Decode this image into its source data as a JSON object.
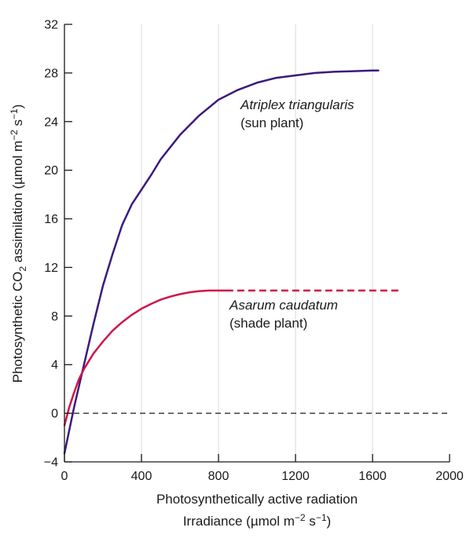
{
  "chart_data": {
    "type": "line",
    "title": "",
    "xlabel_line1": "Photosynthetically active radiation",
    "xlabel_line2_parts": [
      "Irradiance (",
      "µ",
      "mol m",
      "−2",
      " s",
      "−1",
      ")"
    ],
    "ylabel_parts": [
      "Photosynthetic CO",
      "2",
      " assimilation (",
      "µ",
      "mol m",
      "−2",
      " s",
      "−1",
      ")"
    ],
    "xlim": [
      0,
      2000
    ],
    "ylim": [
      -4,
      32
    ],
    "x_ticks": [
      0,
      400,
      800,
      1200,
      1600,
      2000
    ],
    "y_ticks": [
      -4,
      0,
      4,
      8,
      12,
      16,
      20,
      24,
      28,
      32
    ],
    "x_tick_labels": [
      "0",
      "400",
      "800",
      "1200",
      "1600",
      "2000"
    ],
    "y_tick_labels": [
      "−4",
      "0",
      "4",
      "8",
      "12",
      "16",
      "20",
      "24",
      "28",
      "32"
    ],
    "vertical_grid_x": [
      400,
      800,
      1200,
      1600
    ],
    "zero_reference_line": 0,
    "colors": {
      "sun": "#3c1a7d",
      "shade": "#d0154a",
      "grid": "#e8e8e8",
      "axis": "#1a1a1a",
      "reference": "#1a1a1a"
    },
    "series": [
      {
        "key": "sun",
        "x": [
          0,
          50,
          100,
          150,
          200,
          250,
          300,
          350,
          400,
          450,
          500,
          600,
          700,
          800,
          900,
          1000,
          1100,
          1200,
          1300,
          1400,
          1500,
          1600,
          1630
        ],
        "y": [
          -3.3,
          0.5,
          3.9,
          7.3,
          10.5,
          13.1,
          15.5,
          17.2,
          18.4,
          19.6,
          20.9,
          22.9,
          24.5,
          25.8,
          26.6,
          27.2,
          27.6,
          27.8,
          28.0,
          28.1,
          28.15,
          28.2,
          28.2
        ]
      },
      {
        "key": "shade",
        "x": [
          0,
          25,
          50,
          75,
          100,
          150,
          200,
          250,
          300,
          350,
          400,
          450,
          500,
          550,
          600,
          650,
          700,
          750,
          800,
          840
        ],
        "y": [
          -1.0,
          0.5,
          1.7,
          2.8,
          3.6,
          4.9,
          5.9,
          6.8,
          7.5,
          8.1,
          8.6,
          9.0,
          9.35,
          9.6,
          9.8,
          9.95,
          10.05,
          10.1,
          10.1,
          10.1
        ],
        "extension": {
          "x": [
            840,
            1750
          ],
          "y": [
            10.1,
            10.1
          ],
          "style": "dashed"
        }
      }
    ],
    "annotations": [
      {
        "series": "sun",
        "lines": [
          "Atriplex triangularis",
          "(sun plant)"
        ]
      },
      {
        "series": "shade",
        "lines": [
          "Asarum caudatum",
          "(shade plant)"
        ]
      }
    ]
  }
}
